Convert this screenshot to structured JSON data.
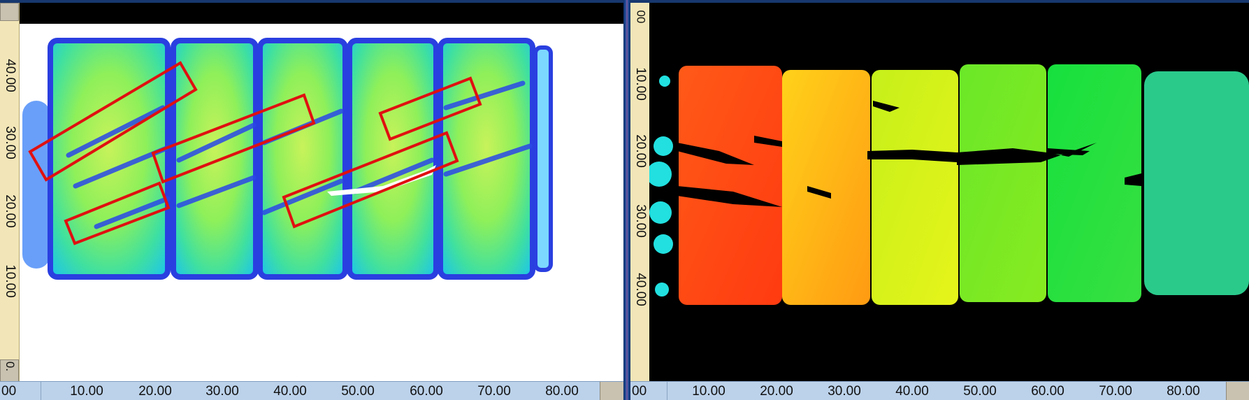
{
  "left_view": {
    "y_axis_labels": [
      "40.00",
      "30.00",
      "20.00",
      "10.00",
      "0."
    ],
    "x_axis_labels": [
      "00",
      "10.00",
      "20.00",
      "30.00",
      "40.00",
      "50.00",
      "60.00",
      "70.00",
      "80.00"
    ]
  },
  "right_view": {
    "y_axis_labels": [
      "00",
      "10.00",
      "20.00",
      "30.00",
      "40.00"
    ],
    "x_axis_labels": [
      "00",
      "10.00",
      "20.00",
      "30.00",
      "40.00",
      "50.00",
      "60.00",
      "70.00",
      "80.00"
    ]
  },
  "colors": {
    "amplitude_blue": "#2a3fe0",
    "amplitude_green": "#7ff05a",
    "highlight_box": "#e01010",
    "depth_red": "#ff3a10",
    "depth_green": "#10e040"
  },
  "icons": [
    "ruler-corner-icon"
  ]
}
